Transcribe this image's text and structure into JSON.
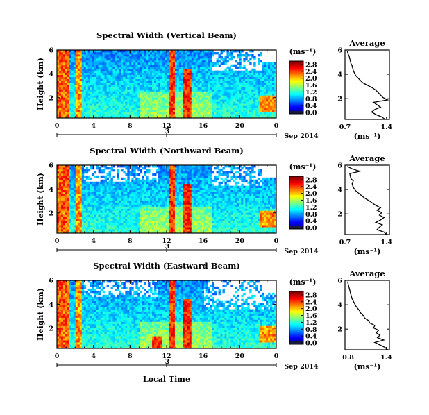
{
  "chart_data": [
    {
      "type": "heatmap",
      "title": "Spectral Width (Vertical Beam)",
      "ylabel": "Height (km)",
      "xlabel": "",
      "x_ticks": [
        "0",
        "4",
        "8",
        "12",
        "16",
        "20",
        "0"
      ],
      "y_ticks": [
        "2",
        "4",
        "6"
      ],
      "date_label": "Sep 2014",
      "date_ticks": [
        "3"
      ],
      "xlim": [
        0,
        24
      ],
      "ylim": [
        0.3,
        6
      ],
      "colorbar": {
        "unit": "(ms⁻¹)",
        "ticks": [
          "0.0",
          "0.4",
          "0.8",
          "1.2",
          "1.6",
          "2.0",
          "2.4",
          "2.8"
        ],
        "range": [
          0,
          3
        ]
      },
      "average": {
        "title": "Average",
        "xlabel": "(ms⁻¹)",
        "x_ticks": [
          "0.7",
          "1.4"
        ],
        "y_ticks": [
          "2",
          "4",
          "6"
        ],
        "xlim": [
          0.7,
          1.45
        ],
        "ylim": [
          0.3,
          6
        ],
        "height_km": [
          0.3,
          0.5,
          0.7,
          0.9,
          1.1,
          1.3,
          1.5,
          1.7,
          1.9,
          2.1,
          2.3,
          2.5,
          2.7,
          2.9,
          3.1,
          3.3,
          3.5,
          3.7,
          3.9,
          4.1,
          4.3,
          4.5,
          4.7,
          4.9,
          5.1,
          5.3,
          5.5,
          5.7,
          5.9
        ],
        "width": [
          1.38,
          1.32,
          1.22,
          1.15,
          1.2,
          1.3,
          1.24,
          1.18,
          1.42,
          1.34,
          1.3,
          1.26,
          1.22,
          1.16,
          1.08,
          1.0,
          0.96,
          0.92,
          0.88,
          0.86,
          0.84,
          0.83,
          0.82,
          0.8,
          0.79,
          0.78,
          0.77,
          0.75,
          0.74
        ]
      }
    },
    {
      "type": "heatmap",
      "title": "Spectral Width (Northward Beam)",
      "ylabel": "Height (km)",
      "xlabel": "",
      "x_ticks": [
        "0",
        "4",
        "8",
        "12",
        "16",
        "20",
        "0"
      ],
      "y_ticks": [
        "2",
        "4",
        "6"
      ],
      "date_label": "Sep 2014",
      "date_ticks": [
        "3"
      ],
      "xlim": [
        0,
        24
      ],
      "ylim": [
        0.3,
        6
      ],
      "colorbar": {
        "unit": "(ms⁻¹)",
        "ticks": [
          "0.0",
          "0.4",
          "0.8",
          "1.2",
          "1.6",
          "2.0",
          "2.4",
          "2.8"
        ],
        "range": [
          0,
          3
        ]
      },
      "average": {
        "title": "Average",
        "xlabel": "(ms⁻¹)",
        "x_ticks": [
          "0.7",
          "1.4"
        ],
        "y_ticks": [
          "2",
          "4",
          "6"
        ],
        "xlim": [
          0.7,
          1.45
        ],
        "ylim": [
          0.3,
          6
        ],
        "height_km": [
          0.3,
          0.5,
          0.7,
          0.9,
          1.1,
          1.3,
          1.5,
          1.7,
          1.9,
          2.1,
          2.3,
          2.5,
          2.7,
          2.9,
          3.1,
          3.3,
          3.5,
          3.7,
          3.9,
          4.1,
          4.3,
          4.5,
          4.7,
          4.9,
          5.1,
          5.3,
          5.5,
          5.7,
          5.9
        ],
        "width": [
          1.4,
          1.36,
          1.24,
          1.28,
          1.33,
          1.22,
          1.3,
          1.36,
          1.28,
          1.32,
          1.24,
          1.3,
          1.22,
          1.16,
          1.1,
          1.03,
          0.98,
          0.93,
          0.88,
          0.85,
          0.83,
          0.82,
          0.84,
          0.8,
          0.79,
          0.78,
          0.95,
          0.82,
          0.74
        ]
      }
    },
    {
      "type": "heatmap",
      "title": "Spectral Width (Eastward Beam)",
      "ylabel": "Height (km)",
      "xlabel": "Local Time",
      "x_ticks": [
        "0",
        "4",
        "8",
        "12",
        "16",
        "20",
        "0"
      ],
      "y_ticks": [
        "2",
        "4",
        "6"
      ],
      "date_label": "Sep 2014",
      "date_ticks": [
        "3"
      ],
      "xlim": [
        0,
        24
      ],
      "ylim": [
        0.3,
        6
      ],
      "colorbar": {
        "unit": "(ms⁻¹)",
        "ticks": [
          "0.0",
          "0.4",
          "0.8",
          "1.2",
          "1.6",
          "2.0",
          "2.4",
          "2.8"
        ],
        "range": [
          0,
          3
        ]
      },
      "average": {
        "title": "Average",
        "xlabel": "(ms⁻¹)",
        "x_ticks": [
          "0.8",
          "1.4"
        ],
        "y_ticks": [
          "2",
          "4",
          "6"
        ],
        "xlim": [
          0.75,
          1.45
        ],
        "ylim": [
          0.3,
          6
        ],
        "height_km": [
          0.3,
          0.5,
          0.7,
          0.9,
          1.1,
          1.3,
          1.5,
          1.7,
          1.9,
          2.1,
          2.3,
          2.5,
          2.7,
          2.9,
          3.1,
          3.3,
          3.5,
          3.7,
          3.9,
          4.1,
          4.3,
          4.5,
          4.7,
          4.9,
          5.1,
          5.3,
          5.5,
          5.7,
          5.9
        ],
        "width": [
          1.42,
          1.38,
          1.3,
          1.22,
          1.36,
          1.26,
          1.3,
          1.24,
          1.28,
          1.2,
          1.22,
          1.14,
          1.12,
          1.06,
          1.04,
          1.0,
          0.98,
          0.95,
          0.92,
          0.9,
          0.88,
          0.86,
          0.85,
          0.84,
          0.83,
          0.82,
          0.81,
          0.8,
          0.79
        ]
      }
    }
  ]
}
